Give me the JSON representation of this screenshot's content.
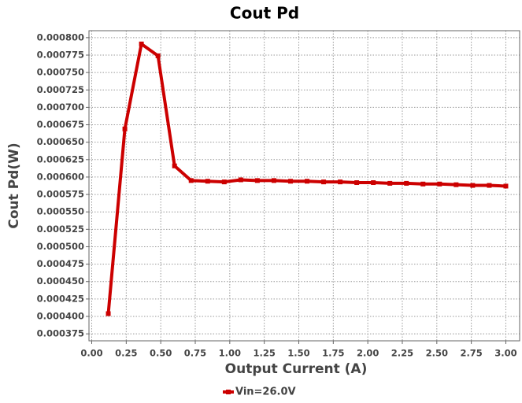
{
  "chart_data": {
    "type": "line",
    "title": "Cout Pd",
    "x_label": "Output Current (A)",
    "y_label": "Cout Pd(W)",
    "x": [
      0.12,
      0.24,
      0.36,
      0.48,
      0.6,
      0.72,
      0.84,
      0.96,
      1.08,
      1.2,
      1.32,
      1.44,
      1.56,
      1.68,
      1.8,
      1.92,
      2.04,
      2.16,
      2.28,
      2.4,
      2.52,
      2.64,
      2.76,
      2.88,
      3.0
    ],
    "series": [
      {
        "name": "Vin=26.0V",
        "color": "#cc0000",
        "values": [
          0.000404,
          0.000669,
          0.000791,
          0.000774,
          0.000616,
          0.000595,
          0.000594,
          0.000593,
          0.000596,
          0.000595,
          0.000595,
          0.000594,
          0.000594,
          0.000593,
          0.000593,
          0.000592,
          0.000592,
          0.000591,
          0.000591,
          0.00059,
          0.00059,
          0.000589,
          0.000588,
          0.000588,
          0.000587
        ]
      }
    ],
    "xlim": [
      -0.02,
      3.1
    ],
    "ylim": [
      0.000365,
      0.00081
    ],
    "xticks": [
      {
        "value": 0,
        "label": "0.00"
      },
      {
        "value": 0.25,
        "label": "0.25"
      },
      {
        "value": 0.5,
        "label": "0.50"
      },
      {
        "value": 0.75,
        "label": "0.75"
      },
      {
        "value": 1,
        "label": "1.00"
      },
      {
        "value": 1.25,
        "label": "1.25"
      },
      {
        "value": 1.5,
        "label": "1.50"
      },
      {
        "value": 1.75,
        "label": "1.75"
      },
      {
        "value": 2,
        "label": "2.00"
      },
      {
        "value": 2.25,
        "label": "2.25"
      },
      {
        "value": 2.5,
        "label": "2.50"
      },
      {
        "value": 2.75,
        "label": "2.75"
      },
      {
        "value": 3,
        "label": "3.00"
      }
    ],
    "yticks": [
      {
        "value": 0.000375,
        "label": "0.000375"
      },
      {
        "value": 0.0004,
        "label": "0.000400"
      },
      {
        "value": 0.000425,
        "label": "0.000425"
      },
      {
        "value": 0.00045,
        "label": "0.000450"
      },
      {
        "value": 0.000475,
        "label": "0.000475"
      },
      {
        "value": 0.0005,
        "label": "0.000500"
      },
      {
        "value": 0.000525,
        "label": "0.000525"
      },
      {
        "value": 0.00055,
        "label": "0.000550"
      },
      {
        "value": 0.000575,
        "label": "0.000575"
      },
      {
        "value": 0.0006,
        "label": "0.000600"
      },
      {
        "value": 0.000625,
        "label": "0.000625"
      },
      {
        "value": 0.00065,
        "label": "0.000650"
      },
      {
        "value": 0.000675,
        "label": "0.000675"
      },
      {
        "value": 0.0007,
        "label": "0.000700"
      },
      {
        "value": 0.000725,
        "label": "0.000725"
      },
      {
        "value": 0.00075,
        "label": "0.000750"
      },
      {
        "value": 0.000775,
        "label": "0.000775"
      },
      {
        "value": 0.0008,
        "label": "0.000800"
      }
    ],
    "grid": true,
    "legend": "bottom"
  }
}
